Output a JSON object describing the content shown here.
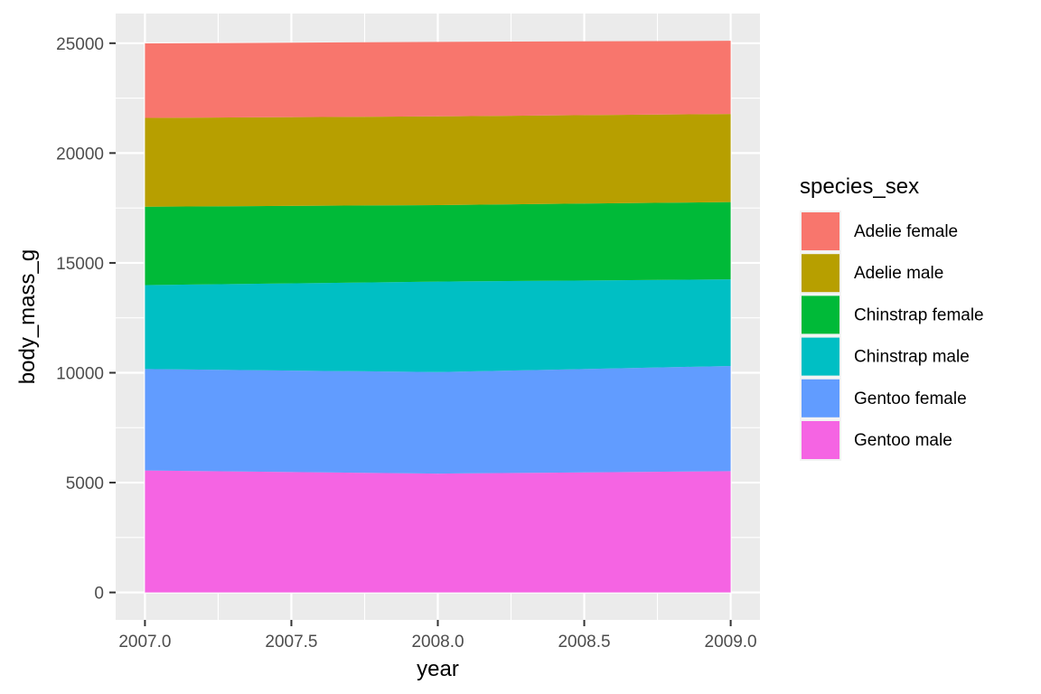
{
  "chart_data": {
    "type": "area",
    "stacked": true,
    "xlabel": "year",
    "ylabel": "body_mass_g",
    "xlim": [
      2006.9,
      2009.1
    ],
    "ylim": [
      -1250,
      26350
    ],
    "x": [
      2007,
      2008,
      2009
    ],
    "x_ticks": [
      2007.0,
      2007.5,
      2008.0,
      2008.5,
      2009.0
    ],
    "x_tick_labels": [
      "2007.0",
      "2007.5",
      "2008.0",
      "2008.5",
      "2009.0"
    ],
    "y_ticks": [
      0,
      5000,
      10000,
      15000,
      20000,
      25000
    ],
    "y_tick_labels": [
      "0",
      "5000",
      "10000",
      "15000",
      "20000",
      "25000"
    ],
    "grid": true,
    "legend": {
      "title": "species_sex",
      "position": "right"
    },
    "series": [
      {
        "name": "Adelie female",
        "values": [
          3390,
          3390,
          3330
        ],
        "color": "#F8766D"
      },
      {
        "name": "Adelie male",
        "values": [
          4040,
          4040,
          4010
        ],
        "color": "#B79F00"
      },
      {
        "name": "Chinstrap female",
        "values": [
          3570,
          3480,
          3520
        ],
        "color": "#00BA38"
      },
      {
        "name": "Chinstrap male",
        "values": [
          3820,
          4120,
          3940
        ],
        "color": "#00BFC4"
      },
      {
        "name": "Gentoo female",
        "values": [
          4620,
          4620,
          4790
        ],
        "color": "#619CFF"
      },
      {
        "name": "Gentoo male",
        "values": [
          5550,
          5410,
          5520
        ],
        "color": "#F564E3"
      }
    ]
  }
}
